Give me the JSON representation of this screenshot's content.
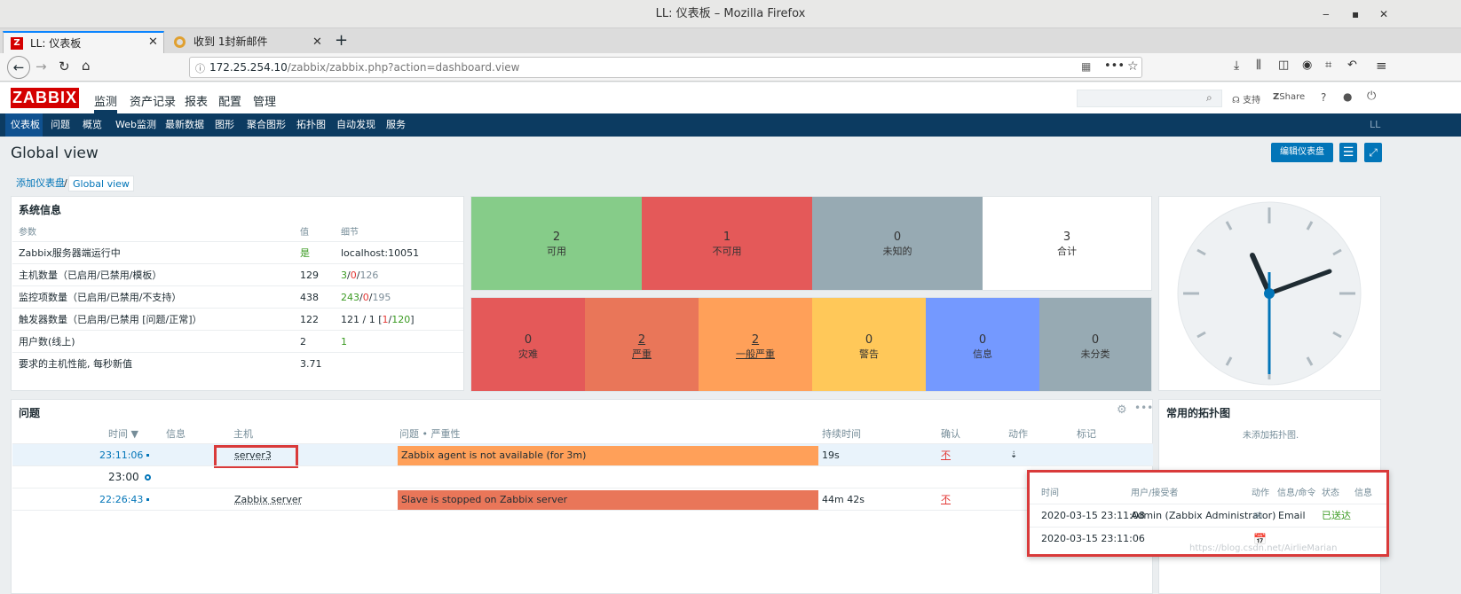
{
  "window": {
    "title": "LL: 仪表板 – Mozilla Firefox",
    "min": "‒",
    "max": "▪",
    "close": "✕"
  },
  "tabs": [
    {
      "label": "LL: 仪表板",
      "close": "✕"
    },
    {
      "label": "收到 1封新邮件",
      "close": "✕"
    }
  ],
  "newtab": "+",
  "url": {
    "host": "172.25.254.10",
    "path": "/zabbix/zabbix.php?action=dashboard.view"
  },
  "zabbix": {
    "logo": "ZABBIX",
    "menu": [
      "监测",
      "资产记录",
      "报表",
      "配置",
      "管理"
    ],
    "support": "支持",
    "share": "Share",
    "help": "?",
    "submenu": [
      "仪表板",
      "问题",
      "概览",
      "Web监测",
      "最新数据",
      "图形",
      "聚合图形",
      "拓扑图",
      "自动发现",
      "服务"
    ],
    "user": "LL"
  },
  "page": {
    "title": "Global view",
    "edit_button": "编辑仪表盘"
  },
  "breadcrumb": {
    "add": "添加仪表盘",
    "sep": "/",
    "current": "Global view"
  },
  "sysinfo": {
    "title": "系统信息",
    "headers": [
      "参数",
      "值",
      "细节"
    ],
    "rows": [
      {
        "param": "Zabbix服务器端运行中",
        "value": "是",
        "detail": "localhost:10051"
      },
      {
        "param": "主机数量（已启用/已禁用/模板）",
        "value": "129",
        "d1": "3",
        "d2": "0",
        "d3": "126",
        "sep": "/"
      },
      {
        "param": "监控项数量（已启用/已禁用/不支持）",
        "value": "438",
        "d1": "243",
        "d2": "0",
        "d3": "195",
        "sep": "/"
      },
      {
        "param": "触发器数量（已启用/已禁用 [问题/正常]）",
        "value": "122",
        "d1": "121 / 1 [",
        "d2": "1",
        "d3": "120",
        "dend": "]",
        "sep": "/"
      },
      {
        "param": "用户数(线上)",
        "value": "2",
        "detail": "1"
      },
      {
        "param": "要求的主机性能, 每秒新值",
        "value": "3.71",
        "detail": ""
      }
    ]
  },
  "hosts_status": [
    {
      "count": "2",
      "label": "可用",
      "color": "#86cc89"
    },
    {
      "count": "1",
      "label": "不可用",
      "color": "#e45959"
    },
    {
      "count": "0",
      "label": "未知的",
      "color": "#97aab3"
    },
    {
      "count": "3",
      "label": "合计",
      "color": "#ffffff"
    }
  ],
  "severity": [
    {
      "count": "0",
      "label": "灾难",
      "color": "#e45959"
    },
    {
      "count": "2",
      "label": "严重",
      "color": "#e97659"
    },
    {
      "count": "2",
      "label": "一般严重",
      "color": "#ffa059"
    },
    {
      "count": "0",
      "label": "警告",
      "color": "#ffc859"
    },
    {
      "count": "0",
      "label": "信息",
      "color": "#7499ff"
    },
    {
      "count": "0",
      "label": "未分类",
      "color": "#97aab3"
    }
  ],
  "problems": {
    "title": "问题",
    "headers": [
      "时间 ▼",
      "信息",
      "主机",
      "问题 • 严重性",
      "持续时间",
      "确认",
      "动作",
      "标记"
    ],
    "rows": [
      {
        "time": "23:11:06",
        "host": "server3",
        "problem": "Zabbix agent is not available (for 3m)",
        "duration": "19s",
        "ack": "不",
        "color": "#ffa059"
      },
      {
        "time": "22:26:43",
        "host": "Zabbix server",
        "problem": "Slave is stopped on Zabbix server",
        "duration": "44m 42s",
        "ack": "不",
        "color": "#e97659"
      }
    ],
    "divider": "23:00"
  },
  "maps": {
    "title": "常用的拓扑图",
    "empty": "未添加拓扑图."
  },
  "actions_popup": {
    "headers": [
      "时间",
      "用户/接受者",
      "动作",
      "信息/命令",
      "状态",
      "信息"
    ],
    "rows": [
      {
        "time": "2020-03-15 23:11:08",
        "user": "Admin (Zabbix Administrator)",
        "info": "Email",
        "status": "已送达"
      },
      {
        "time": "2020-03-15 23:11:06",
        "user": "",
        "info": "",
        "status": ""
      }
    ]
  },
  "watermark": "https://blog.csdn.net/AirlieMarian"
}
